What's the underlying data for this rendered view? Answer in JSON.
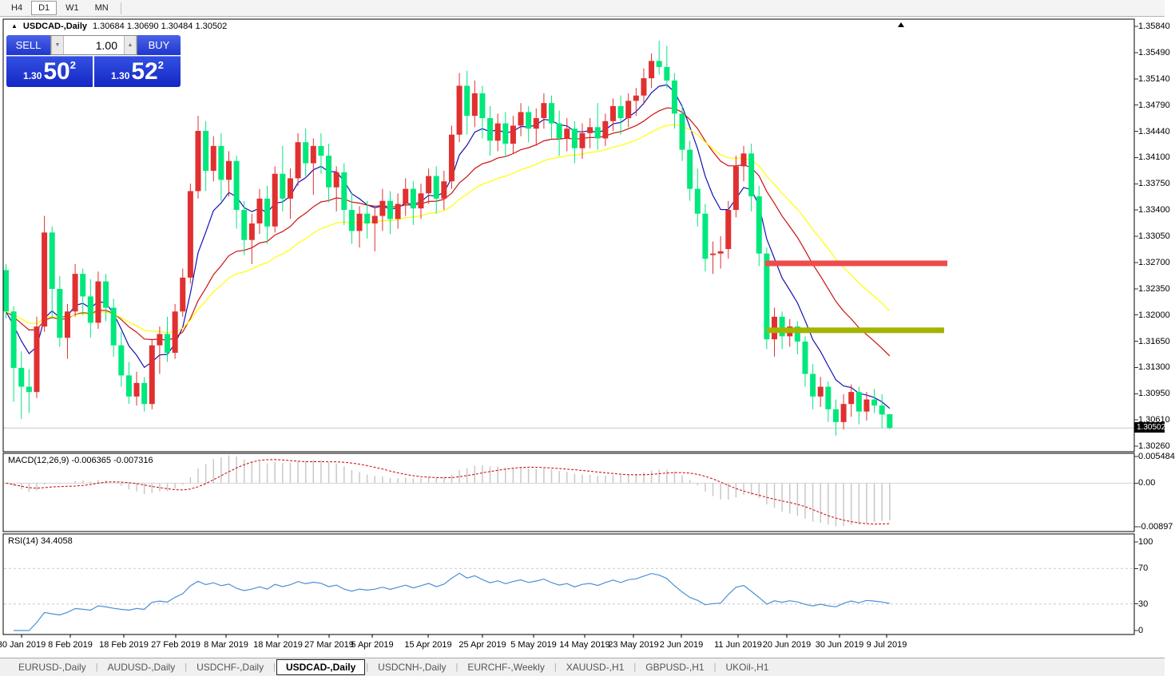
{
  "toolbar": {
    "timeframes": [
      "H4",
      "D1",
      "W1",
      "MN"
    ],
    "active_timeframe": "D1"
  },
  "title": {
    "collapse_icon": "▲",
    "symbol": "USDCAD-,Daily",
    "quote": "1.30684 1.30690 1.30484 1.30502"
  },
  "trade": {
    "sell_label": "SELL",
    "buy_label": "BUY",
    "volume": "1.00",
    "down_icon": "▼",
    "up_icon": "▲",
    "sell_price": {
      "prefix": "1.30",
      "big": "50",
      "sup": "2"
    },
    "buy_price": {
      "prefix": "1.30",
      "big": "52",
      "sup": "2"
    }
  },
  "colors": {
    "candle_up": "#E03030",
    "candle_down": "#00E87C",
    "ma_fast": "#1212B2",
    "ma_mid": "#CC1111",
    "ma_slow": "#FFFF00",
    "macd_hist": "#C8C8C8",
    "macd_signal": "#CC0000",
    "rsi_line": "#4A90D8",
    "hline_red": "#EE4C4C",
    "hline_olive": "#A2B400",
    "trade_blue": "#2136CD",
    "tag_bg": "#000000"
  },
  "chart_data": [
    {
      "type": "candlestick",
      "title": "USDCAD-,Daily",
      "last_bar": {
        "open": 1.30684,
        "high": 1.3069,
        "low": 1.30484,
        "close": 1.30502
      },
      "price_tag": "1.30502",
      "bid_price": 1.30502,
      "yticks": [
        "1.35840",
        "1.35490",
        "1.35140",
        "1.34790",
        "1.34440",
        "1.34100",
        "1.33750",
        "1.33400",
        "1.33050",
        "1.32700",
        "1.32350",
        "1.32000",
        "1.31650",
        "1.31300",
        "1.30950",
        "1.30610",
        "1.30260"
      ],
      "xticks": [
        {
          "label": "30 Jan 2019",
          "x": 27
        },
        {
          "label": "8 Feb 2019",
          "x": 88
        },
        {
          "label": "18 Feb 2019",
          "x": 155
        },
        {
          "label": "27 Feb 2019",
          "x": 220
        },
        {
          "label": "8 Mar 2019",
          "x": 283
        },
        {
          "label": "18 Mar 2019",
          "x": 348
        },
        {
          "label": "27 Mar 2019",
          "x": 412
        },
        {
          "label": "5 Apr 2019",
          "x": 466
        },
        {
          "label": "15 Apr 2019",
          "x": 536
        },
        {
          "label": "25 Apr 2019",
          "x": 604
        },
        {
          "label": "5 May 2019",
          "x": 668
        },
        {
          "label": "14 May 2019",
          "x": 732
        },
        {
          "label": "23 May 2019",
          "x": 793
        },
        {
          "label": "2 Jun 2019",
          "x": 853
        },
        {
          "label": "11 Jun 2019",
          "x": 924
        },
        {
          "label": "20 Jun 2019",
          "x": 985
        },
        {
          "label": "30 Jun 2019",
          "x": 1051
        },
        {
          "label": "9 Jul 2019",
          "x": 1110
        }
      ],
      "moving_averages": [
        {
          "name": "ma-fast",
          "period": 7,
          "method": "ema",
          "color": "#1212B2"
        },
        {
          "name": "ma-mid",
          "period": 20,
          "method": "ema",
          "color": "#CC1111"
        },
        {
          "name": "ma-slow",
          "period": 33,
          "method": "ema",
          "color": "#FFFF00"
        }
      ],
      "hlines": [
        {
          "price": 1.3269,
          "x1": 958,
          "x2": 1186,
          "color": "#EE4C4C",
          "thickness": 7
        },
        {
          "price": 1.318,
          "x1": 960,
          "x2": 1182,
          "color": "#A2B400",
          "thickness": 7
        }
      ],
      "candles": [
        [
          1.326,
          1.3268,
          1.3196,
          1.3205
        ],
        [
          1.3205,
          1.3212,
          1.3085,
          1.313
        ],
        [
          1.313,
          1.3152,
          1.3062,
          1.3105
        ],
        [
          1.3105,
          1.3128,
          1.307,
          1.3098
        ],
        [
          1.3098,
          1.3198,
          1.309,
          1.3185
        ],
        [
          1.3185,
          1.3332,
          1.3178,
          1.331
        ],
        [
          1.331,
          1.3318,
          1.3195,
          1.3235
        ],
        [
          1.3235,
          1.3252,
          1.3158,
          1.317
        ],
        [
          1.317,
          1.3215,
          1.3142,
          1.3205
        ],
        [
          1.3205,
          1.3268,
          1.3198,
          1.3255
        ],
        [
          1.3255,
          1.3262,
          1.32,
          1.3225
        ],
        [
          1.3225,
          1.3248,
          1.317,
          1.319
        ],
        [
          1.319,
          1.3258,
          1.3182,
          1.3245
        ],
        [
          1.3245,
          1.3255,
          1.3192,
          1.321
        ],
        [
          1.321,
          1.3222,
          1.3145,
          1.316
        ],
        [
          1.316,
          1.3178,
          1.3105,
          1.312
        ],
        [
          1.312,
          1.3138,
          1.3082,
          1.3092
        ],
        [
          1.3092,
          1.3125,
          1.308,
          1.311
        ],
        [
          1.311,
          1.3118,
          1.3072,
          1.3082
        ],
        [
          1.3082,
          1.3168,
          1.3075,
          1.316
        ],
        [
          1.316,
          1.3185,
          1.3122,
          1.3175
        ],
        [
          1.3175,
          1.3198,
          1.3138,
          1.315
        ],
        [
          1.315,
          1.3215,
          1.3142,
          1.3205
        ],
        [
          1.3205,
          1.3262,
          1.3198,
          1.325
        ],
        [
          1.325,
          1.3375,
          1.3242,
          1.3365
        ],
        [
          1.3365,
          1.3465,
          1.3355,
          1.3445
        ],
        [
          1.3445,
          1.3458,
          1.3365,
          1.3392
        ],
        [
          1.3392,
          1.3438,
          1.3378,
          1.3425
        ],
        [
          1.3425,
          1.3442,
          1.3352,
          1.338
        ],
        [
          1.338,
          1.3418,
          1.3358,
          1.3405
        ],
        [
          1.3405,
          1.3412,
          1.3315,
          1.334
        ],
        [
          1.334,
          1.3352,
          1.328,
          1.33
        ],
        [
          1.33,
          1.3335,
          1.3268,
          1.3322
        ],
        [
          1.3322,
          1.3368,
          1.3308,
          1.3355
        ],
        [
          1.3355,
          1.3372,
          1.3295,
          1.3318
        ],
        [
          1.3318,
          1.3398,
          1.331,
          1.3388
        ],
        [
          1.3388,
          1.3425,
          1.3338,
          1.3355
        ],
        [
          1.3355,
          1.3395,
          1.3328,
          1.3382
        ],
        [
          1.3382,
          1.3442,
          1.3372,
          1.343
        ],
        [
          1.343,
          1.3448,
          1.3385,
          1.3402
        ],
        [
          1.3402,
          1.3435,
          1.336,
          1.3425
        ],
        [
          1.3425,
          1.3442,
          1.3388,
          1.3412
        ],
        [
          1.3412,
          1.3428,
          1.335,
          1.337
        ],
        [
          1.337,
          1.3398,
          1.3338,
          1.339
        ],
        [
          1.339,
          1.3402,
          1.332,
          1.334
        ],
        [
          1.334,
          1.3362,
          1.3295,
          1.3312
        ],
        [
          1.3312,
          1.3345,
          1.329,
          1.3335
        ],
        [
          1.3335,
          1.3352,
          1.3302,
          1.3322
        ],
        [
          1.3322,
          1.3342,
          1.3285,
          1.3332
        ],
        [
          1.3332,
          1.3368,
          1.3312,
          1.3352
        ],
        [
          1.3352,
          1.3365,
          1.3308,
          1.3328
        ],
        [
          1.3328,
          1.3362,
          1.3315,
          1.3348
        ],
        [
          1.3348,
          1.3382,
          1.3332,
          1.3368
        ],
        [
          1.3368,
          1.3378,
          1.332,
          1.3342
        ],
        [
          1.3342,
          1.3375,
          1.3328,
          1.3362
        ],
        [
          1.3362,
          1.3395,
          1.3348,
          1.3385
        ],
        [
          1.3385,
          1.3398,
          1.3335,
          1.3355
        ],
        [
          1.3355,
          1.3392,
          1.334,
          1.3378
        ],
        [
          1.3378,
          1.3452,
          1.3368,
          1.344
        ],
        [
          1.344,
          1.3522,
          1.343,
          1.3505
        ],
        [
          1.3505,
          1.3525,
          1.344,
          1.3465
        ],
        [
          1.3465,
          1.3512,
          1.345,
          1.3495
        ],
        [
          1.3495,
          1.3505,
          1.3435,
          1.3462
        ],
        [
          1.3462,
          1.3478,
          1.3412,
          1.3432
        ],
        [
          1.3432,
          1.3468,
          1.3418,
          1.3455
        ],
        [
          1.3455,
          1.347,
          1.341,
          1.3428
        ],
        [
          1.3428,
          1.3465,
          1.3415,
          1.3452
        ],
        [
          1.3452,
          1.3482,
          1.3438,
          1.347
        ],
        [
          1.347,
          1.3478,
          1.343,
          1.3448
        ],
        [
          1.3448,
          1.3475,
          1.3425,
          1.3462
        ],
        [
          1.3462,
          1.3495,
          1.3448,
          1.3482
        ],
        [
          1.3482,
          1.3492,
          1.3435,
          1.3455
        ],
        [
          1.3455,
          1.3472,
          1.3412,
          1.3435
        ],
        [
          1.3435,
          1.3462,
          1.3418,
          1.3448
        ],
        [
          1.3448,
          1.3458,
          1.3402,
          1.3422
        ],
        [
          1.3422,
          1.3455,
          1.3408,
          1.3442
        ],
        [
          1.3442,
          1.3462,
          1.3422,
          1.345
        ],
        [
          1.345,
          1.3482,
          1.342,
          1.3435
        ],
        [
          1.3435,
          1.3468,
          1.3425,
          1.3458
        ],
        [
          1.3458,
          1.3488,
          1.3445,
          1.3478
        ],
        [
          1.3478,
          1.3492,
          1.344,
          1.3462
        ],
        [
          1.3462,
          1.3495,
          1.345,
          1.3485
        ],
        [
          1.3485,
          1.3502,
          1.3465,
          1.3492
        ],
        [
          1.3492,
          1.3528,
          1.348,
          1.3515
        ],
        [
          1.3515,
          1.3548,
          1.3502,
          1.3538
        ],
        [
          1.3538,
          1.3565,
          1.352,
          1.353
        ],
        [
          1.353,
          1.3558,
          1.3502,
          1.3512
        ],
        [
          1.3512,
          1.3522,
          1.3448,
          1.3468
        ],
        [
          1.3468,
          1.3478,
          1.3405,
          1.342
        ],
        [
          1.342,
          1.3432,
          1.3352,
          1.3368
        ],
        [
          1.3368,
          1.3395,
          1.3318,
          1.3335
        ],
        [
          1.3335,
          1.3348,
          1.3258,
          1.3275
        ],
        [
          1.328,
          1.3298,
          1.3255,
          1.3282
        ],
        [
          1.3282,
          1.3305,
          1.3262,
          1.3285
        ],
        [
          1.3288,
          1.3352,
          1.3275,
          1.334
        ],
        [
          1.334,
          1.3412,
          1.333,
          1.3398
        ],
        [
          1.3398,
          1.3425,
          1.3378,
          1.3415
        ],
        [
          1.3415,
          1.3428,
          1.3338,
          1.3358
        ],
        [
          1.3358,
          1.3372,
          1.3265,
          1.3282
        ],
        [
          1.3282,
          1.329,
          1.3155,
          1.3168
        ],
        [
          1.3168,
          1.321,
          1.3145,
          1.3198
        ],
        [
          1.3198,
          1.3205,
          1.3155,
          1.3172
        ],
        [
          1.3172,
          1.3195,
          1.3158,
          1.3185
        ],
        [
          1.3185,
          1.3192,
          1.3148,
          1.3165
        ],
        [
          1.3165,
          1.3172,
          1.3105,
          1.3122
        ],
        [
          1.3122,
          1.3135,
          1.3075,
          1.3092
        ],
        [
          1.3092,
          1.3118,
          1.3078,
          1.3105
        ],
        [
          1.3105,
          1.3112,
          1.3058,
          1.3075
        ],
        [
          1.3075,
          1.3088,
          1.304,
          1.3058
        ],
        [
          1.3058,
          1.3095,
          1.3048,
          1.3082
        ],
        [
          1.3082,
          1.3108,
          1.3065,
          1.3098
        ],
        [
          1.3098,
          1.3105,
          1.3055,
          1.3072
        ],
        [
          1.3072,
          1.3098,
          1.306,
          1.3088
        ],
        [
          1.3088,
          1.3102,
          1.307,
          1.308
        ],
        [
          1.308,
          1.3095,
          1.305,
          1.3068
        ],
        [
          1.30684,
          1.3069,
          1.30484,
          1.30502
        ]
      ]
    },
    {
      "type": "macd",
      "label": "MACD(12,26,9) -0.006365 -0.007316",
      "params": [
        12,
        26,
        9
      ],
      "main_value": -0.006365,
      "signal_value": -0.007316,
      "yticks": [
        "0.005484",
        "0.00",
        "-0.00897"
      ]
    },
    {
      "type": "rsi",
      "label": "RSI(14) 34.4058",
      "period": 14,
      "value": 34.4058,
      "levels": [
        70,
        30
      ],
      "yticks": [
        "100",
        "70",
        "30",
        "0"
      ]
    }
  ]
}
